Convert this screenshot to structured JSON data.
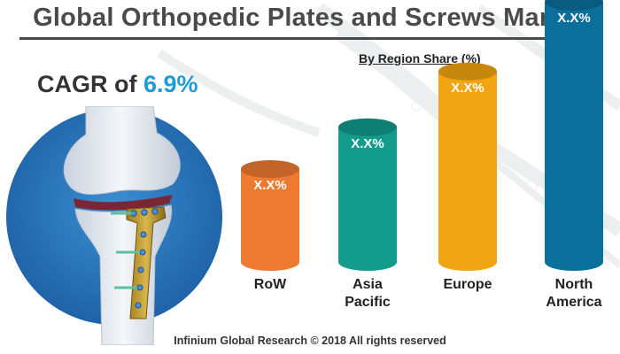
{
  "header": {
    "title": "Global Orthopedic Plates and Screws Market",
    "subtitle": "By Region Share (%)"
  },
  "cagr": {
    "label": "CAGR of",
    "value": "6.9%"
  },
  "footer": {
    "credit": "Infinium Global Research © 2018 All rights reserved"
  },
  "chart_data": {
    "type": "bar",
    "title": "By Region Share (%)",
    "categories": [
      [
        "RoW"
      ],
      [
        "Asia",
        "Pacific"
      ],
      [
        "Europe"
      ],
      [
        "North",
        "America"
      ]
    ],
    "values": [
      1,
      1.45,
      2.05,
      2.8
    ],
    "data_labels": [
      "X.X%",
      "X.X%",
      "X.X%",
      "X.X%"
    ],
    "ylim": [
      0,
      3
    ],
    "grid": false,
    "colors": [
      "#ee7a32",
      "#139b8c",
      "#f1a512",
      "#0b6f9c"
    ]
  },
  "colors": {
    "title": "#4a4a4a",
    "accent": "#1f9bd6"
  }
}
